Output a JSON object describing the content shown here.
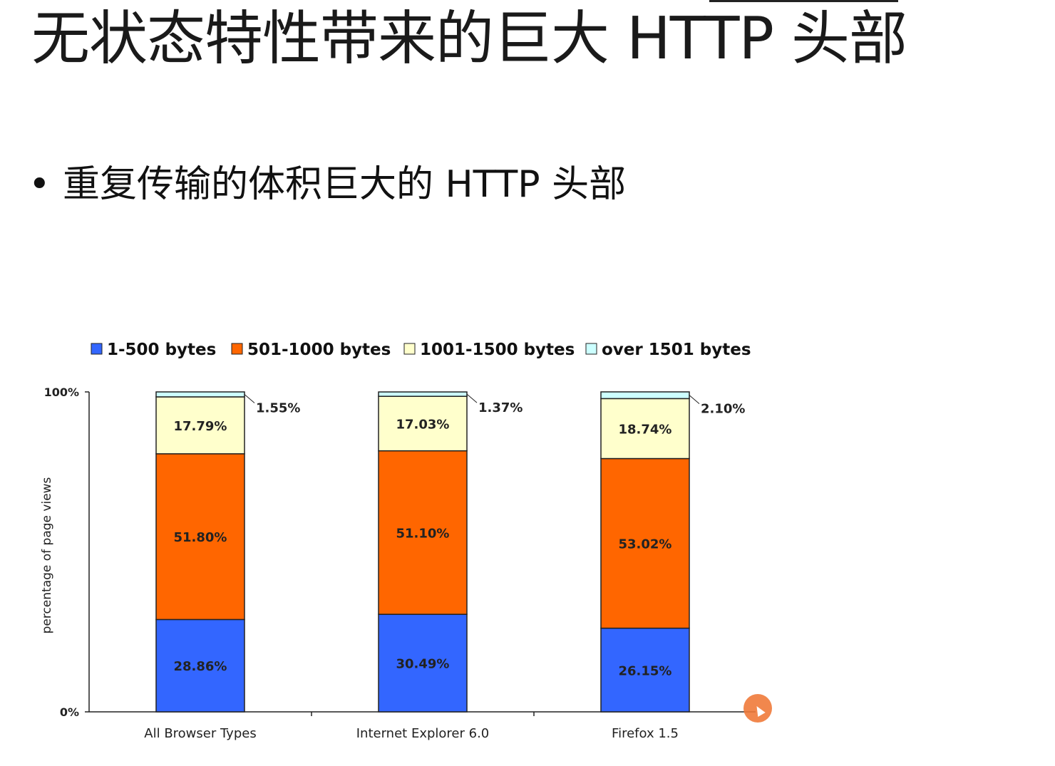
{
  "slide": {
    "title": "无状态特性带来的巨大 HTTP 头部",
    "bullet": "重复传输的体积巨大的 HTTP 头部",
    "bullet_symbol": "•"
  },
  "chart_data": {
    "type": "bar",
    "stacked": true,
    "categories": [
      "All Browser Types",
      "Internet Explorer 6.0",
      "Firefox 1.5"
    ],
    "series": [
      {
        "name": "1-500 bytes",
        "color": "#3366ff",
        "values": [
          28.86,
          30.49,
          26.15
        ],
        "labels": [
          "28.86%",
          "30.49%",
          "26.15%"
        ]
      },
      {
        "name": "501-1000 bytes",
        "color": "#ff6600",
        "values": [
          51.8,
          51.1,
          53.02
        ],
        "labels": [
          "51.80%",
          "51.10%",
          "53.02%"
        ]
      },
      {
        "name": "1001-1500 bytes",
        "color": "#ffffcc",
        "values": [
          17.79,
          17.03,
          18.74
        ],
        "labels": [
          "17.79%",
          "17.03%",
          "18.74%"
        ]
      },
      {
        "name": "over 1501 bytes",
        "color": "#ccffff",
        "values": [
          1.55,
          1.37,
          2.1
        ],
        "labels": [
          "1.55%",
          "1.37%",
          "2.10%"
        ]
      }
    ],
    "ylabel": "percentage of page views",
    "xlabel": "",
    "ylim": [
      0,
      100
    ],
    "yticks": [
      "0%",
      "100%"
    ],
    "legend_position": "top",
    "grid": false
  }
}
